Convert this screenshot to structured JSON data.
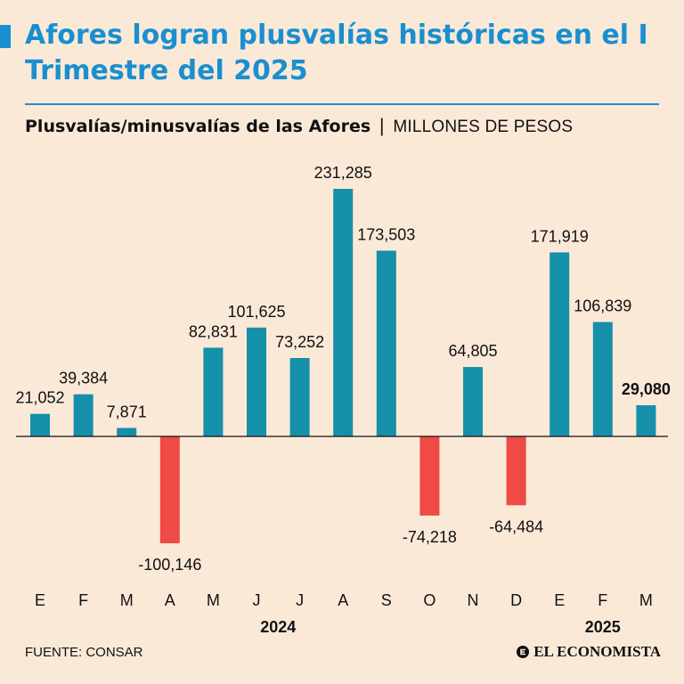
{
  "header": {
    "title": "Afores logran plusvalías históricas en el I Trimestre del 2025",
    "subtitle_main": "Plusvalías/minusvalías de las Afores",
    "subtitle_separator": "|",
    "subtitle_units": "MILLONES DE PESOS"
  },
  "colors": {
    "positive": "#168fa8",
    "negative": "#ef4a45",
    "accent": "#1a8fd0",
    "background": "#fbe9d8"
  },
  "chart_data": {
    "type": "bar",
    "title": "Plusvalías/minusvalías de las Afores",
    "ylabel": "MILLONES DE PESOS",
    "categories": [
      "E",
      "F",
      "M",
      "A",
      "M",
      "J",
      "J",
      "A",
      "S",
      "O",
      "N",
      "D",
      "E",
      "F",
      "M"
    ],
    "values": [
      21052,
      39384,
      7871,
      -100146,
      82831,
      101625,
      73252,
      231285,
      173503,
      -74218,
      64805,
      -64484,
      171919,
      106839,
      29080
    ],
    "labels": [
      "21,052",
      "39,384",
      "7,871",
      "-100,146",
      "82,831",
      "101,625",
      "73,252",
      "231,285",
      "173,503",
      "-74,218",
      "64,805",
      "-64,484",
      "171,919",
      "106,839",
      "29,080"
    ],
    "highlight_index": 14,
    "ylim": [
      -100146,
      231285
    ],
    "grid": false,
    "legend": "none",
    "year_groups": [
      {
        "label": "2024",
        "start": 0,
        "end": 11
      },
      {
        "label": "2025",
        "start": 12,
        "end": 14
      }
    ]
  },
  "footer": {
    "source": "FUENTE: CONSAR",
    "brand": "EL ECONOMISTA"
  }
}
